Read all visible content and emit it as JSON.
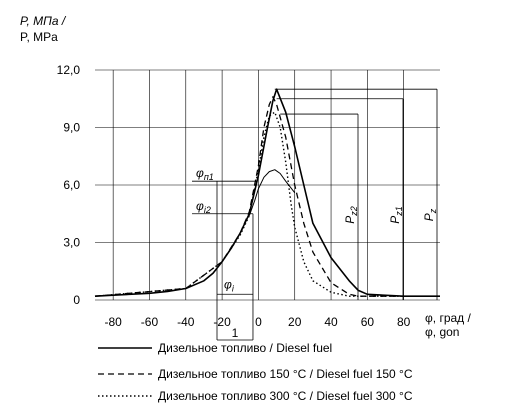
{
  "chart_data": {
    "type": "line",
    "ylabel_ru": "P, МПа /",
    "ylabel_en": "P, MPa",
    "xlabel_ru": "φ, град /",
    "xlabel_en": "φ, gon",
    "xlim": [
      -90,
      100
    ],
    "ylim": [
      0,
      12.0
    ],
    "x_ticks": [
      -80,
      -60,
      -40,
      -20,
      0,
      20,
      40,
      60,
      80
    ],
    "x_tick_labels": [
      "-80",
      "-60",
      "-40",
      "-20",
      "0",
      "20",
      "40",
      "60",
      "80"
    ],
    "y_ticks": [
      0,
      3.0,
      6.0,
      9.0,
      12.0
    ],
    "y_tick_labels": [
      "0",
      "3,0",
      "6,0",
      "9,0",
      "12,0"
    ],
    "grid": true,
    "series": [
      {
        "name": "Дизельное топливо / Diesel fuel",
        "style": "solid",
        "x": [
          -90,
          -80,
          -60,
          -50,
          -40,
          -30,
          -25,
          -20,
          -15,
          -10,
          -5,
          0,
          5,
          8,
          10,
          15,
          20,
          25,
          30,
          40,
          50,
          55,
          60,
          80,
          100
        ],
        "y": [
          0.2,
          0.25,
          0.35,
          0.45,
          0.6,
          1.0,
          1.4,
          2.0,
          2.7,
          3.5,
          4.5,
          6.5,
          9.0,
          10.4,
          11.0,
          9.8,
          8.0,
          6.0,
          4.0,
          2.2,
          1.0,
          0.5,
          0.3,
          0.2,
          0.2
        ]
      },
      {
        "name": "Дизельное топливо 150 °C / Diesel fuel 150 °C",
        "style": "dashed",
        "x": [
          -90,
          -40,
          -20,
          -10,
          -5,
          0,
          3,
          6,
          8,
          10,
          15,
          20,
          25,
          30,
          40,
          50,
          55,
          60,
          100
        ],
        "y": [
          0.2,
          0.6,
          2.0,
          3.5,
          4.6,
          7.0,
          9.0,
          10.2,
          10.6,
          10.2,
          8.5,
          6.0,
          4.0,
          2.5,
          0.9,
          0.3,
          0.2,
          0.2,
          0.2
        ]
      },
      {
        "name": "Дизельное топливо 300 °C / Diesel fuel 300 °C",
        "style": "dotted",
        "x": [
          -90,
          -40,
          -20,
          -10,
          -5,
          0,
          3,
          6,
          9,
          12,
          15,
          18,
          20,
          25,
          30,
          40,
          50,
          55,
          100
        ],
        "y": [
          0.2,
          0.6,
          2.0,
          3.4,
          4.4,
          6.8,
          8.5,
          9.6,
          9.8,
          9.0,
          7.2,
          5.0,
          3.8,
          2.0,
          1.0,
          0.4,
          0.2,
          0.2,
          0.2
        ]
      },
      {
        "name": "",
        "style": "solid-thin",
        "x": [
          -5,
          -2,
          0,
          3,
          6,
          9,
          12,
          15,
          20
        ],
        "y": [
          4.4,
          5.2,
          5.8,
          6.4,
          6.7,
          6.8,
          6.6,
          6.2,
          5.6
        ]
      }
    ],
    "annotations": {
      "phi_p1": "φ",
      "phi_p1_sub": "п1",
      "phi_i2": "φ",
      "phi_i2_sub": "i2",
      "phi_i": "φ",
      "phi_i_sub": "i",
      "pz2": "P",
      "pz2_sub": "z2",
      "pz1": "P",
      "pz1_sub": "z1",
      "pz": "P",
      "pz_sub": "z",
      "dim_1": "1"
    },
    "legend": [
      {
        "style": "solid",
        "label": "Дизельное топливо / Diesel fuel"
      },
      {
        "style": "dashed",
        "label": "Дизельное топливо 150 °C / Diesel fuel 150 °C"
      },
      {
        "style": "dotted",
        "label": "Дизельное топливо 300 °C / Diesel fuel 300 °C"
      }
    ],
    "legend_placement": "bottom"
  }
}
